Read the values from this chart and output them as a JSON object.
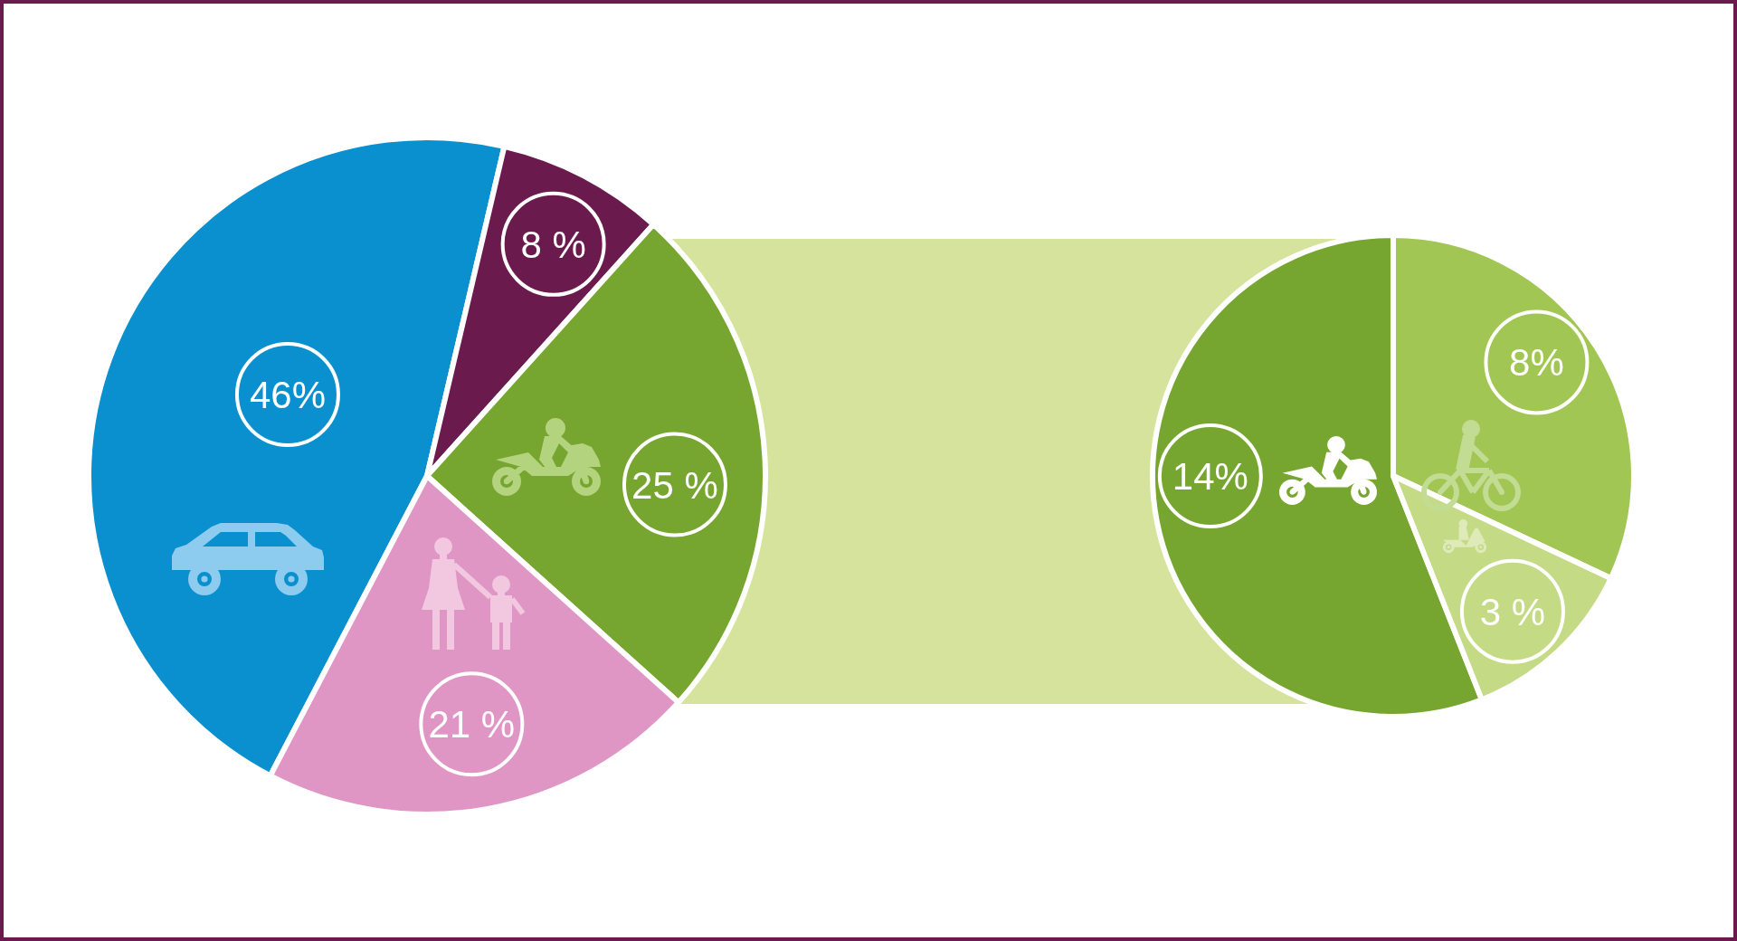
{
  "chart_data": [
    {
      "type": "pie",
      "categories": [
        null,
        null,
        null,
        null
      ],
      "values": [
        46,
        8,
        25,
        21
      ],
      "colors": [
        "#0a8fcf",
        "#6b1a4e",
        "#76a530",
        "#e096c4"
      ],
      "value_labels": [
        "46%",
        "8 %",
        "25 %",
        "21 %"
      ]
    },
    {
      "type": "pie",
      "categories": [
        null,
        null,
        null
      ],
      "values": [
        14,
        8,
        3
      ],
      "colors": [
        "#76a530",
        "#a2c653",
        "#c5da84"
      ],
      "value_labels": [
        "14%",
        "8%",
        "3 %"
      ]
    }
  ]
}
